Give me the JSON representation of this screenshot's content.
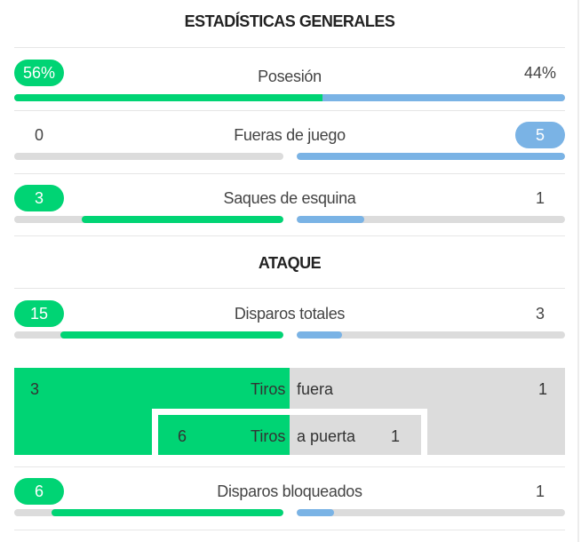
{
  "general": {
    "title": "ESTADÍSTICAS GENERALES",
    "possession": {
      "label": "Posesión",
      "home": "56%",
      "away": "44%",
      "home_fraction": 0.56
    },
    "offsides": {
      "label": "Fueras de juego",
      "home": "0",
      "away": "5",
      "home_fraction": 0.0,
      "away_fraction": 1.0
    },
    "corners": {
      "label": "Saques de esquina",
      "home": "3",
      "away": "1",
      "home_fraction": 0.75,
      "away_fraction": 0.25
    }
  },
  "attack": {
    "title": "ATAQUE",
    "total_shots": {
      "label": "Disparos totales",
      "home": "15",
      "away": "3",
      "home_fraction": 0.83,
      "away_fraction": 0.17
    },
    "shots_off": {
      "label_left": "Tiros",
      "label_right": "fuera",
      "home": "3",
      "away": "1"
    },
    "shots_on": {
      "label_left": "Tiros",
      "label_right": "a puerta",
      "home": "6",
      "away": "1"
    },
    "blocked_shots": {
      "label": "Disparos bloqueados",
      "home": "6",
      "away": "1",
      "home_fraction": 0.86,
      "away_fraction": 0.14
    }
  },
  "colors": {
    "home": "#00d474",
    "away": "#7ab3e5",
    "track": "#dcdcdc"
  }
}
